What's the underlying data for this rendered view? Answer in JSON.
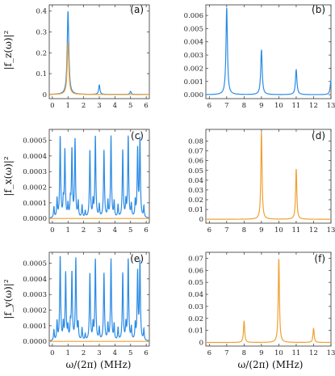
{
  "colors": {
    "blue": "#2b8be6",
    "orange": "#f0a030",
    "frame": "#333333"
  },
  "chart_data": [
    {
      "type": "line",
      "panel_label": "(a)",
      "ylabel": "|f_z(ω)|²",
      "xlim": [
        -0.2,
        6.2
      ],
      "ylim": [
        -0.02,
        0.43
      ],
      "xticks": [
        0,
        1,
        2,
        3,
        4,
        5,
        6
      ],
      "xticklabels": [
        "0",
        "1",
        "2",
        "3",
        "4",
        "5",
        "6"
      ],
      "yticks": [
        0,
        0.1,
        0.2,
        0.3,
        0.4
      ],
      "yticklabels": [
        "0",
        "0.1",
        "0.2",
        "0.3",
        "0.4"
      ],
      "series": [
        {
          "color": "blue",
          "peaks": [
            [
              1,
              0.4,
              0.06
            ],
            [
              3,
              0.045,
              0.05
            ],
            [
              5,
              0.015,
              0.05
            ]
          ]
        },
        {
          "color": "orange",
          "peaks": [
            [
              1,
              0.25,
              0.06
            ]
          ]
        }
      ]
    },
    {
      "type": "line",
      "panel_label": "(b)",
      "xlim": [
        5.8,
        13.0
      ],
      "ylim": [
        -0.0003,
        0.0068
      ],
      "xticks": [
        6,
        7,
        8,
        9,
        10,
        11,
        12,
        13
      ],
      "xticklabels": [
        "6",
        "7",
        "8",
        "9",
        "10",
        "11",
        "12",
        "13"
      ],
      "yticks": [
        0,
        0.001,
        0.002,
        0.003,
        0.004,
        0.005,
        0.006
      ],
      "yticklabels": [
        "0.000",
        "0.001",
        "0.002",
        "0.003",
        "0.004",
        "0.005",
        "0.006"
      ],
      "series": [
        {
          "color": "blue",
          "peaks": [
            [
              7,
              0.0066,
              0.05
            ],
            [
              9,
              0.0034,
              0.05
            ],
            [
              11,
              0.0019,
              0.05
            ],
            [
              13,
              0.0011,
              0.05
            ]
          ]
        }
      ]
    },
    {
      "type": "line",
      "panel_label": "(c)",
      "ylabel": "|f_x(ω)|²",
      "xlim": [
        -0.2,
        6.2
      ],
      "ylim": [
        -3e-05,
        0.00057
      ],
      "xticks": [
        0,
        1,
        2,
        3,
        4,
        5,
        6
      ],
      "xticklabels": [
        "0",
        "1",
        "2",
        "3",
        "4",
        "5",
        "6"
      ],
      "yticks": [
        0,
        0.0001,
        0.0002,
        0.0003,
        0.0004,
        0.0005
      ],
      "yticklabels": [
        "0.0000",
        "0.0001",
        "0.0002",
        "0.0003",
        "0.0004",
        "0.0005"
      ],
      "series": [
        {
          "color": "blue",
          "peaks": [
            [
              0.1,
              7e-05,
              0.03
            ],
            [
              0.3,
              0.00012,
              0.03
            ],
            [
              0.5,
              0.00052,
              0.035
            ],
            [
              0.7,
              0.0001,
              0.03
            ],
            [
              0.8,
              0.00043,
              0.035
            ],
            [
              1.0,
              8e-05,
              0.03
            ],
            [
              1.15,
              0.0001,
              0.03
            ],
            [
              1.25,
              0.00043,
              0.035
            ],
            [
              1.45,
              0.0005,
              0.035
            ],
            [
              1.65,
              0.0001,
              0.03
            ],
            [
              1.9,
              8e-05,
              0.03
            ],
            [
              2.1,
              4e-05,
              0.03
            ],
            [
              2.4,
              0.00043,
              0.035
            ],
            [
              2.6,
              0.0001,
              0.03
            ],
            [
              2.75,
              0.00052,
              0.035
            ],
            [
              3.0,
              8e-05,
              0.03
            ],
            [
              3.3,
              0.00043,
              0.035
            ],
            [
              3.55,
              0.0001,
              0.03
            ],
            [
              3.75,
              0.00052,
              0.035
            ],
            [
              3.95,
              0.0001,
              0.03
            ],
            [
              4.2,
              8e-05,
              0.03
            ],
            [
              4.5,
              0.00043,
              0.035
            ],
            [
              4.7,
              0.0001,
              0.03
            ],
            [
              4.85,
              0.00052,
              0.035
            ],
            [
              5.05,
              8e-05,
              0.03
            ],
            [
              5.3,
              0.0001,
              0.03
            ],
            [
              5.45,
              0.00043,
              0.035
            ],
            [
              5.6,
              0.0005,
              0.035
            ],
            [
              5.85,
              7e-05,
              0.03
            ]
          ]
        },
        {
          "color": "orange",
          "peaks": []
        }
      ]
    },
    {
      "type": "line",
      "panel_label": "(d)",
      "xlim": [
        5.8,
        13.0
      ],
      "ylim": [
        -0.004,
        0.092
      ],
      "xticks": [
        6,
        7,
        8,
        9,
        10,
        11,
        12,
        13
      ],
      "xticklabels": [
        "6",
        "7",
        "8",
        "9",
        "10",
        "11",
        "12",
        "13"
      ],
      "yticks": [
        0,
        0.01,
        0.02,
        0.03,
        0.04,
        0.05,
        0.06,
        0.07,
        0.08
      ],
      "yticklabels": [
        "0",
        "0.01",
        "0.02",
        "0.03",
        "0.04",
        "0.05",
        "0.06",
        "0.07",
        "0.08"
      ],
      "series": [
        {
          "color": "orange",
          "peaks": [
            [
              9,
              0.09,
              0.04
            ],
            [
              11,
              0.052,
              0.04
            ]
          ]
        }
      ]
    },
    {
      "type": "line",
      "panel_label": "(e)",
      "ylabel": "|f_y(ω)|²",
      "xlim": [
        -0.2,
        6.2
      ],
      "ylim": [
        -3e-05,
        0.00057
      ],
      "xticks": [
        0,
        1,
        2,
        3,
        4,
        5,
        6
      ],
      "xticklabels": [
        "0",
        "1",
        "2",
        "3",
        "4",
        "5",
        "6"
      ],
      "yticks": [
        0,
        0.0001,
        0.0002,
        0.0003,
        0.0004,
        0.0005
      ],
      "yticklabels": [
        "0.0000",
        "0.0001",
        "0.0002",
        "0.0003",
        "0.0004",
        "0.0005"
      ],
      "xlabel": "ω/(2π) (MHz)",
      "series": [
        {
          "color": "blue",
          "peaks": [
            [
              0.1,
              7e-05,
              0.03
            ],
            [
              0.3,
              0.00012,
              0.03
            ],
            [
              0.5,
              0.00054,
              0.035
            ],
            [
              0.7,
              0.0001,
              0.03
            ],
            [
              0.85,
              0.00043,
              0.035
            ],
            [
              1.0,
              8e-05,
              0.03
            ],
            [
              1.15,
              0.0001,
              0.03
            ],
            [
              1.25,
              0.00043,
              0.035
            ],
            [
              1.5,
              0.00052,
              0.035
            ],
            [
              1.65,
              0.0001,
              0.03
            ],
            [
              1.9,
              8e-05,
              0.03
            ],
            [
              2.1,
              4e-05,
              0.03
            ],
            [
              2.4,
              0.00043,
              0.035
            ],
            [
              2.6,
              0.0001,
              0.03
            ],
            [
              2.75,
              0.00052,
              0.035
            ],
            [
              3.0,
              8e-05,
              0.03
            ],
            [
              3.3,
              0.00043,
              0.035
            ],
            [
              3.55,
              0.0001,
              0.03
            ],
            [
              3.75,
              0.00052,
              0.035
            ],
            [
              3.95,
              0.0001,
              0.03
            ],
            [
              4.2,
              8e-05,
              0.03
            ],
            [
              4.5,
              0.00043,
              0.035
            ],
            [
              4.7,
              0.0001,
              0.03
            ],
            [
              4.85,
              0.00052,
              0.035
            ],
            [
              5.05,
              8e-05,
              0.03
            ],
            [
              5.3,
              0.0001,
              0.03
            ],
            [
              5.45,
              0.00043,
              0.035
            ],
            [
              5.6,
              0.0005,
              0.035
            ],
            [
              5.85,
              7e-05,
              0.03
            ]
          ]
        },
        {
          "color": "orange",
          "peaks": []
        }
      ]
    },
    {
      "type": "line",
      "panel_label": "(f)",
      "xlim": [
        5.8,
        13.0
      ],
      "ylim": [
        -0.003,
        0.075
      ],
      "xticks": [
        6,
        7,
        8,
        9,
        10,
        11,
        12,
        13
      ],
      "xticklabels": [
        "6",
        "7",
        "8",
        "9",
        "10",
        "11",
        "12",
        "13"
      ],
      "yticks": [
        0,
        0.01,
        0.02,
        0.03,
        0.04,
        0.05,
        0.06,
        0.07
      ],
      "yticklabels": [
        "0",
        "0.01",
        "0.02",
        "0.03",
        "0.04",
        "0.05",
        "0.06",
        "0.07"
      ],
      "xlabel": "ω/(2π) (MHz)",
      "series": [
        {
          "color": "orange",
          "peaks": [
            [
              8,
              0.018,
              0.04
            ],
            [
              10,
              0.07,
              0.04
            ],
            [
              12,
              0.012,
              0.04
            ]
          ]
        }
      ]
    }
  ]
}
